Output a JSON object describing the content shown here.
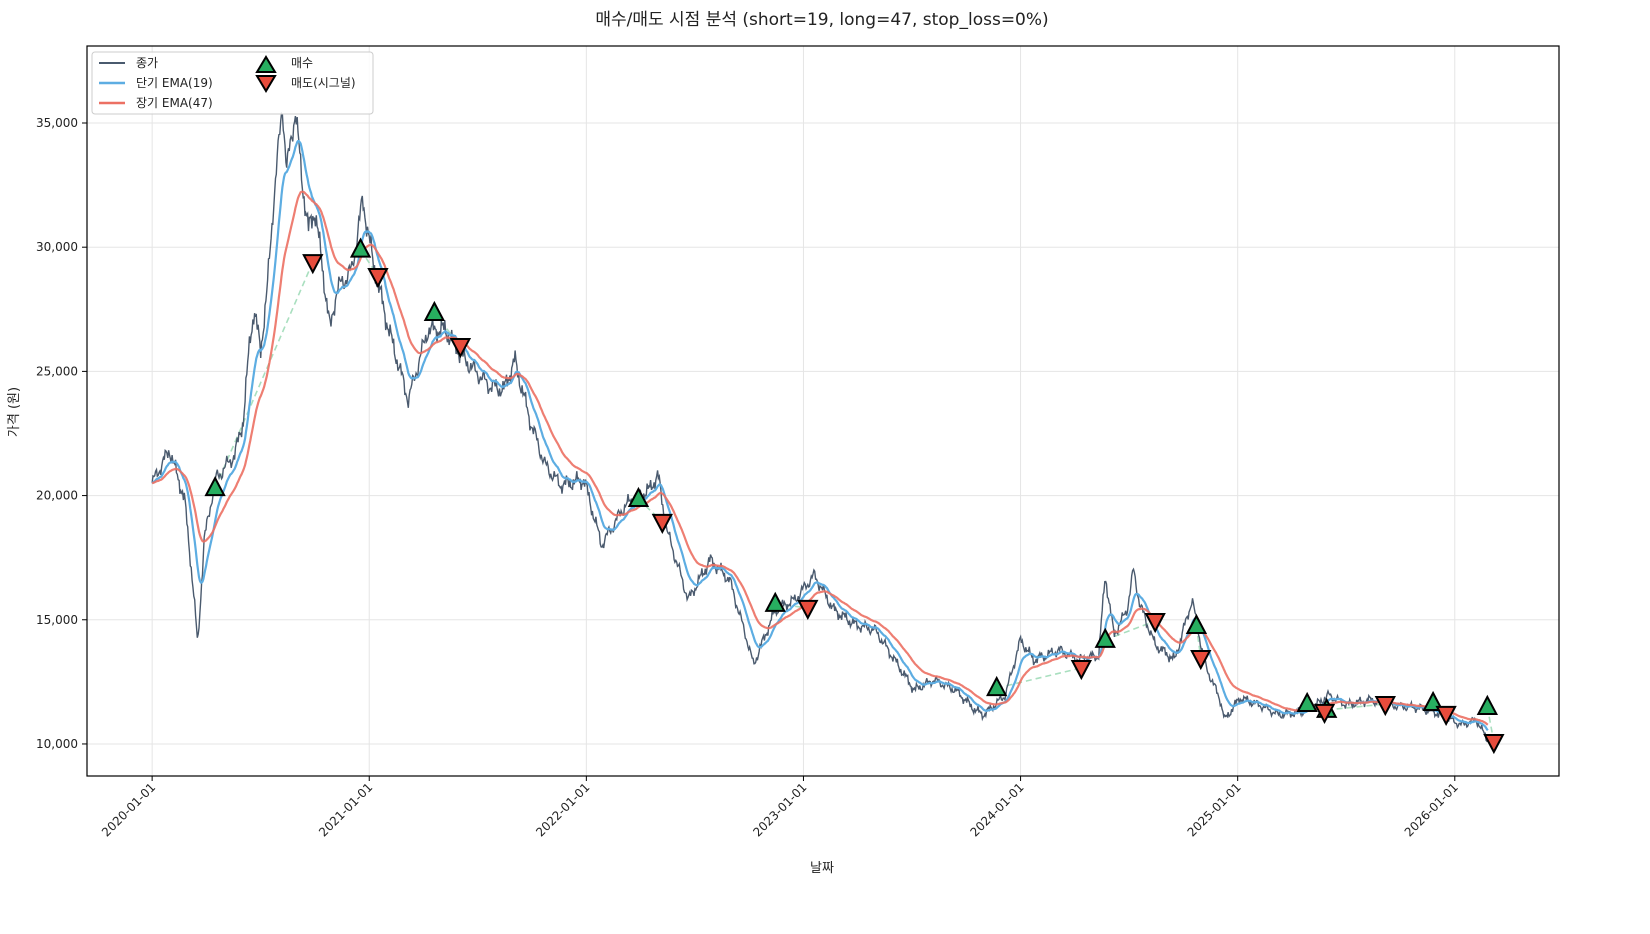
{
  "chart_data": {
    "type": "line",
    "title": "매수/매도 시점 분석 (short=19, long=47, stop_loss=0%)",
    "xlabel": "날짜",
    "ylabel": "가격 (원)",
    "xlim": [
      2019.7,
      2026.48
    ],
    "ylim": [
      8710,
      38100
    ],
    "grid": true,
    "legend_placement": "top-left",
    "x_ticks": [
      {
        "value": 2020,
        "label": "2020-01-01"
      },
      {
        "value": 2021,
        "label": "2021-01-01"
      },
      {
        "value": 2022,
        "label": "2022-01-01"
      },
      {
        "value": 2023,
        "label": "2023-01-01"
      },
      {
        "value": 2024,
        "label": "2024-01-01"
      },
      {
        "value": 2025,
        "label": "2025-01-01"
      },
      {
        "value": 2026,
        "label": "2026-01-01"
      }
    ],
    "y_ticks": [
      {
        "value": 10000,
        "label": "10,000"
      },
      {
        "value": 15000,
        "label": "15,000"
      },
      {
        "value": 20000,
        "label": "20,000"
      },
      {
        "value": 25000,
        "label": "25,000"
      },
      {
        "value": 30000,
        "label": "30,000"
      },
      {
        "value": 35000,
        "label": "35,000"
      }
    ],
    "legend": {
      "close": "종가",
      "ema_short": "단기 EMA(19)",
      "ema_long": "장기 EMA(47)",
      "buy": "매수",
      "sell": "매도(시그널)"
    },
    "colors": {
      "close": "#4a5a6e",
      "ema_short": "#5dade2",
      "ema_long": "#ec7063",
      "buy": "#27ae60",
      "sell": "#e74c3c",
      "trade_line": "#a9dfbf"
    },
    "ema_periods": {
      "short": 19,
      "long": 47
    },
    "close": {
      "x": [
        2020.0,
        2020.08,
        2020.15,
        2020.19,
        2020.21,
        2020.24,
        2020.29,
        2020.38,
        2020.42,
        2020.45,
        2020.47,
        2020.5,
        2020.53,
        2020.56,
        2020.6,
        2020.62,
        2020.66,
        2020.69,
        2020.72,
        2020.75,
        2020.78,
        2020.82,
        2020.85,
        2020.92,
        2020.97,
        2021.02,
        2021.09,
        2021.18,
        2021.27,
        2021.35,
        2021.44,
        2021.55,
        2021.62,
        2021.67,
        2021.74,
        2021.81,
        2021.88,
        2021.99,
        2022.07,
        2022.18,
        2022.29,
        2022.33,
        2022.37,
        2022.47,
        2022.57,
        2022.66,
        2022.74,
        2022.77,
        2022.87,
        2022.96,
        2023.05,
        2023.14,
        2023.24,
        2023.33,
        2023.42,
        2023.51,
        2023.6,
        2023.7,
        2023.79,
        2023.83,
        2023.93,
        2024.0,
        2024.06,
        2024.18,
        2024.27,
        2024.36,
        2024.39,
        2024.43,
        2024.49,
        2024.52,
        2024.55,
        2024.62,
        2024.71,
        2024.79,
        2024.85,
        2024.92,
        2024.94,
        2025.01,
        2025.1,
        2025.19,
        2025.29,
        2025.36,
        2025.42,
        2025.5,
        2025.61,
        2025.73,
        2025.84,
        2025.93,
        2026.03,
        2026.1,
        2026.15
      ],
      "y": [
        20500,
        21840,
        19820,
        16200,
        13990,
        18210,
        20630,
        21630,
        23040,
        26270,
        27470,
        25860,
        28280,
        31900,
        35730,
        33110,
        35520,
        32710,
        30690,
        31500,
        29490,
        26670,
        28280,
        29080,
        31900,
        29280,
        26670,
        23850,
        26670,
        26670,
        25460,
        24450,
        24250,
        25460,
        23040,
        21230,
        20430,
        20630,
        18010,
        19620,
        20230,
        20830,
        18620,
        15800,
        17410,
        16600,
        14190,
        13180,
        15390,
        15800,
        16800,
        15390,
        14790,
        14590,
        13380,
        12170,
        12580,
        12170,
        11370,
        11170,
        11970,
        14190,
        13380,
        13780,
        13380,
        13580,
        16800,
        14390,
        15390,
        17000,
        15600,
        13990,
        13380,
        15800,
        13180,
        11770,
        10970,
        11850,
        11570,
        11170,
        11290,
        11570,
        11970,
        11570,
        11770,
        11530,
        11450,
        11210,
        10760,
        10970,
        10160
      ]
    },
    "buy_signals": [
      {
        "x": 2020.29,
        "y": 20300
      },
      {
        "x": 2020.96,
        "y": 29900
      },
      {
        "x": 2021.3,
        "y": 27350
      },
      {
        "x": 2022.24,
        "y": 19860
      },
      {
        "x": 2022.87,
        "y": 15640
      },
      {
        "x": 2023.89,
        "y": 12250
      },
      {
        "x": 2024.39,
        "y": 14190
      },
      {
        "x": 2024.81,
        "y": 14750
      },
      {
        "x": 2025.32,
        "y": 11610
      },
      {
        "x": 2025.41,
        "y": 11370
      },
      {
        "x": 2025.9,
        "y": 11650
      },
      {
        "x": 2026.15,
        "y": 11490
      }
    ],
    "sell_signals": [
      {
        "x": 2020.74,
        "y": 29400
      },
      {
        "x": 2021.04,
        "y": 28840
      },
      {
        "x": 2021.42,
        "y": 26020
      },
      {
        "x": 2022.35,
        "y": 18940
      },
      {
        "x": 2023.02,
        "y": 15480
      },
      {
        "x": 2024.28,
        "y": 13060
      },
      {
        "x": 2024.62,
        "y": 14950
      },
      {
        "x": 2024.83,
        "y": 13460
      },
      {
        "x": 2025.4,
        "y": 11290
      },
      {
        "x": 2025.68,
        "y": 11610
      },
      {
        "x": 2025.96,
        "y": 11210
      },
      {
        "x": 2026.18,
        "y": 10080
      }
    ]
  }
}
